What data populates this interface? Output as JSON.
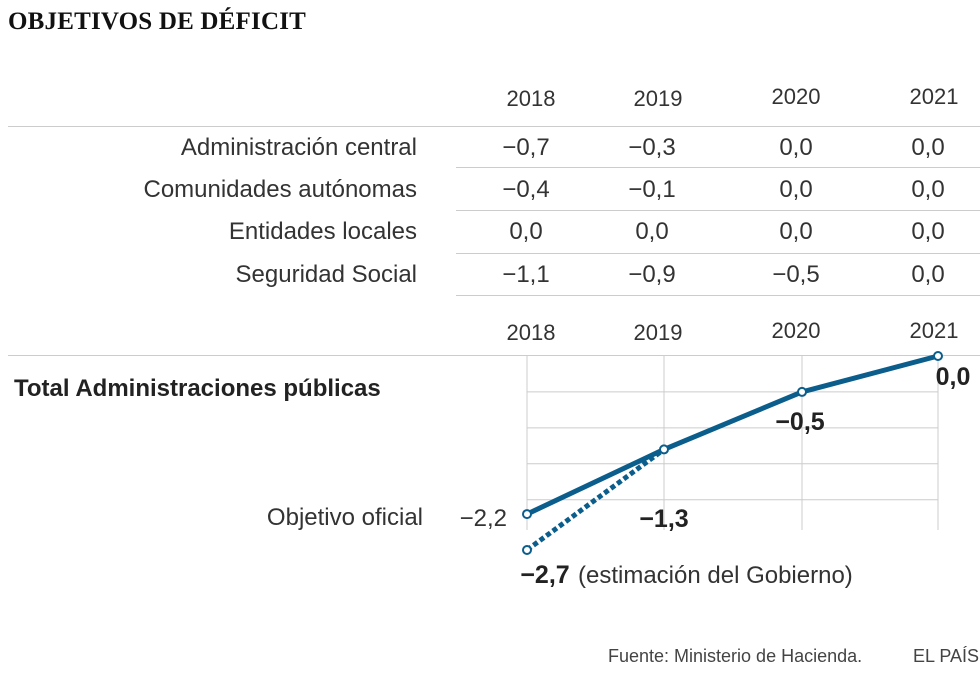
{
  "title": "OBJETIVOS DE DÉFICIT",
  "table": {
    "years": [
      "2018",
      "2019",
      "2020",
      "2021"
    ],
    "rows": [
      {
        "label": "Administración central",
        "values": [
          "−0,7",
          "−0,3",
          "0,0",
          "0,0"
        ]
      },
      {
        "label": "Comunidades autónomas",
        "values": [
          "−0,4",
          "−0,1",
          "0,0",
          "0,0"
        ]
      },
      {
        "label": "Entidades locales",
        "values": [
          "0,0",
          "0,0",
          "0,0",
          "0,0"
        ]
      },
      {
        "label": "Seguridad Social",
        "values": [
          "−1,1",
          "−0,9",
          "−0,5",
          "0,0"
        ]
      }
    ]
  },
  "total_label": "Total Administraciones públicas",
  "chart_data": {
    "type": "line",
    "title": "Total Administraciones públicas",
    "x": [
      "2018",
      "2019",
      "2020",
      "2021"
    ],
    "ylim": [
      -2.7,
      0
    ],
    "series": [
      {
        "name": "Objetivo oficial",
        "values": [
          -2.2,
          -1.3,
          -0.5,
          0.0
        ],
        "labels": [
          "−2,2",
          "−1,3",
          "−0,5",
          "0,0"
        ],
        "style": "solid"
      },
      {
        "name": "estimación del Gobierno",
        "x": [
          "2018",
          "2019"
        ],
        "values": [
          -2.7,
          -1.3
        ],
        "labels": [
          "−2,7",
          ""
        ],
        "style": "dotted"
      }
    ],
    "annotations": {
      "series_label": "Objetivo oficial",
      "estimate_note": "(estimación del Gobierno)"
    }
  },
  "colors": {
    "line": "#0b5e8c",
    "grid": "#cccccc",
    "text": "#333333"
  },
  "footer": {
    "source": "Fuente: Ministerio de Hacienda.",
    "brand": "EL PAÍS"
  }
}
